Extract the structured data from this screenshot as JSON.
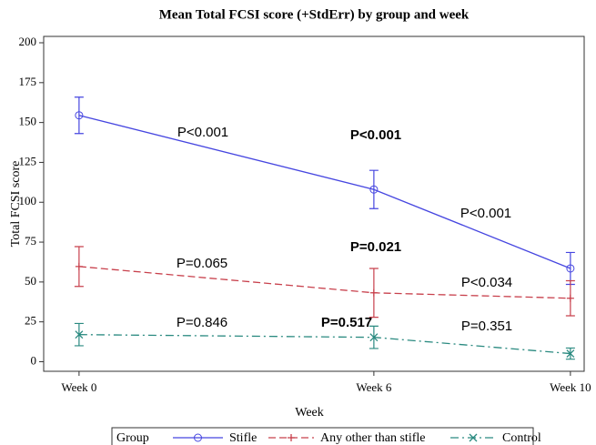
{
  "chart_data": {
    "type": "line",
    "title": "Mean Total FCSI score (+StdErr) by group and week",
    "xlabel": "Week",
    "ylabel": "Total FCSI score",
    "x": [
      0,
      6,
      10
    ],
    "xlim": [
      -0.72,
      10.28
    ],
    "xticks": [
      {
        "value": 0,
        "label": "Week 0"
      },
      {
        "value": 6,
        "label": "Week 6"
      },
      {
        "value": 10,
        "label": "Week 10"
      }
    ],
    "ylim": [
      -6,
      204
    ],
    "yticks": [
      0,
      25,
      50,
      75,
      100,
      125,
      150,
      175,
      200
    ],
    "legend_title": "Group",
    "legend": "bottom",
    "series": [
      {
        "name": "Stifle",
        "color": "#4646e0",
        "dash": "solid",
        "marker": "circle",
        "values": [
          154.5,
          108,
          58.5
        ],
        "errors": [
          11.4,
          12,
          10
        ]
      },
      {
        "name": "Any other than stifle",
        "color": "#c8404c",
        "dash": "dashed",
        "marker": "plus",
        "values": [
          59.7,
          43.2,
          39.8
        ],
        "errors": [
          12.5,
          15.3,
          11
        ]
      },
      {
        "name": "Control",
        "color": "#2a8a80",
        "dash": "dashdot",
        "marker": "x",
        "values": [
          17,
          15.3,
          5.1
        ],
        "errors": [
          7,
          7,
          3.5
        ]
      }
    ],
    "annotations": [
      {
        "text": "P<0.001",
        "bold": false
      },
      {
        "text": "P<0.001",
        "bold": true
      },
      {
        "text": "P<0.001",
        "bold": false
      },
      {
        "text": "P=0.065",
        "bold": false
      },
      {
        "text": "P=0.021",
        "bold": true
      },
      {
        "text": "P<0.034",
        "bold": false
      },
      {
        "text": "P=0.846",
        "bold": false
      },
      {
        "text": "P=0.517",
        "bold": true
      },
      {
        "text": "P=0.351",
        "bold": false
      }
    ]
  }
}
